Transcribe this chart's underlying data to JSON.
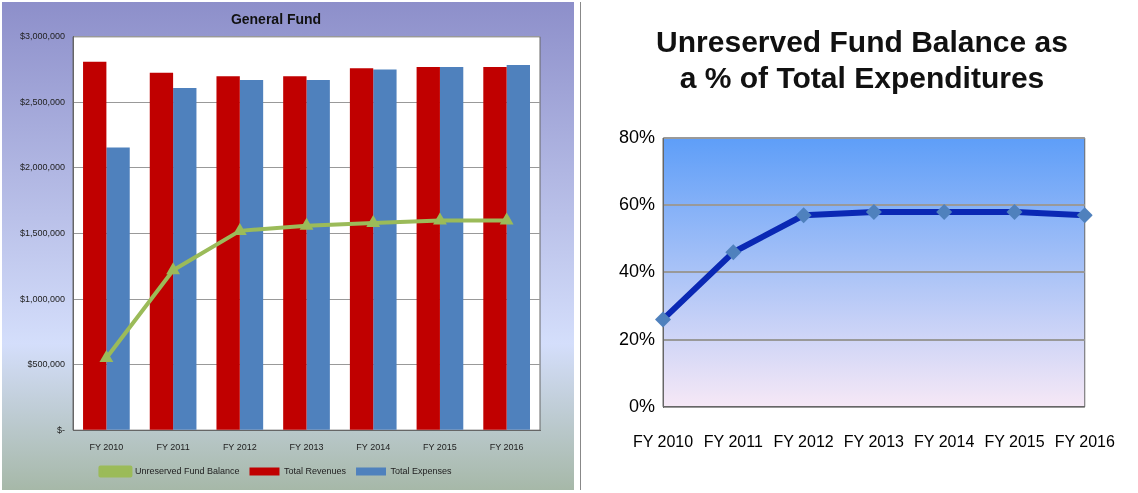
{
  "chart_data": [
    {
      "type": "bar",
      "title": "General Fund",
      "categories": [
        "FY 2010",
        "FY 2011",
        "FY 2012",
        "FY 2013",
        "FY 2014",
        "FY 2015",
        "FY 2016"
      ],
      "series": [
        {
          "name": "Total Revenues",
          "color": "#c00000",
          "values": [
            2810000,
            2725000,
            2700000,
            2700000,
            2760000,
            2770000,
            2770000
          ]
        },
        {
          "name": "Total Expenses",
          "color": "#4f81bd",
          "values": [
            2155000,
            2610000,
            2670000,
            2670000,
            2750000,
            2770000,
            2785000
          ]
        },
        {
          "name": "Unreserved Fund Balance",
          "type": "line",
          "color": "#9bbb59",
          "values": [
            550000,
            1220000,
            1520000,
            1560000,
            1580000,
            1600000,
            1600000
          ]
        }
      ],
      "ylim": [
        0,
        3000000
      ],
      "yticks": [
        {
          "value": 0,
          "label": "$-"
        },
        {
          "value": 500000,
          "label": "$500,000"
        },
        {
          "value": 1000000,
          "label": "$1,000,000"
        },
        {
          "value": 1500000,
          "label": "$1,500,000"
        },
        {
          "value": 2000000,
          "label": "$2,000,000"
        },
        {
          "value": 2500000,
          "label": "$2,500,000"
        },
        {
          "value": 3000000,
          "label": "$3,000,000"
        }
      ],
      "grid": "y",
      "legend": "bottom",
      "marker": "triangle"
    },
    {
      "type": "line",
      "title": "Unreserved Fund Balance as a % of Total Expenditures",
      "categories": [
        "FY 2010",
        "FY 2011",
        "FY 2012",
        "FY 2013",
        "FY 2014",
        "FY 2015",
        "FY 2016"
      ],
      "series": [
        {
          "color": "#0a28b4",
          "values": [
            26,
            46,
            57,
            58,
            58,
            58,
            57
          ]
        }
      ],
      "ylim": [
        0,
        80
      ],
      "yticks": [
        {
          "value": 0,
          "label": "0%"
        },
        {
          "value": 20,
          "label": "20%"
        },
        {
          "value": 40,
          "label": "40%"
        },
        {
          "value": 60,
          "label": "60%"
        },
        {
          "value": 80,
          "label": "80%"
        }
      ],
      "grid": "y",
      "marker": "diamond"
    }
  ]
}
